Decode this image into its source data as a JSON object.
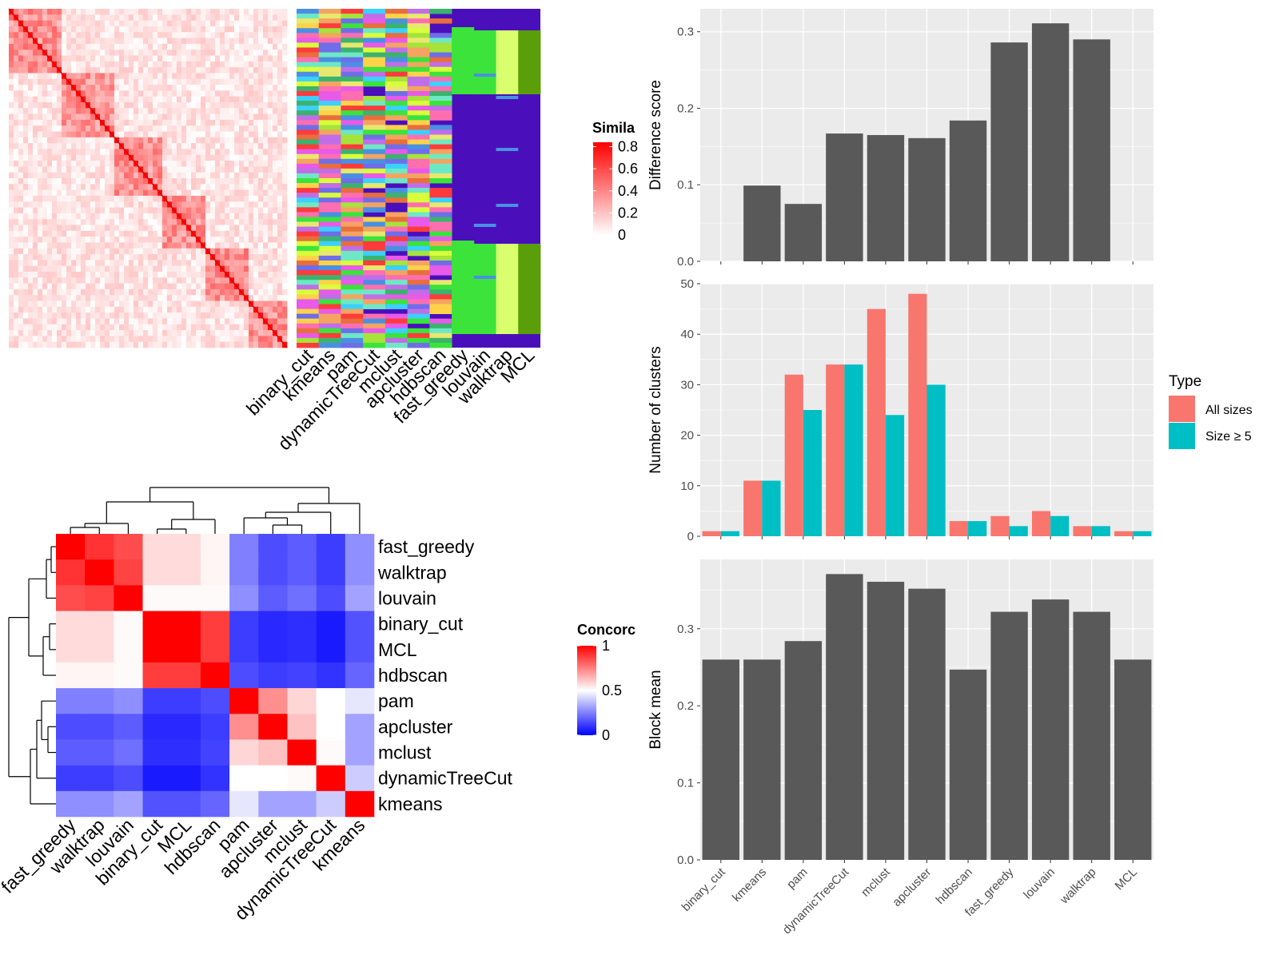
{
  "chart_data": [
    {
      "type": "heatmap",
      "panel": "similarity-heatmap",
      "legend_title": "Simila",
      "legend_ticks": [
        "0.8",
        "0.6",
        "0.4",
        "0.2",
        "0"
      ],
      "legend_values": [
        0.8,
        0.6,
        0.4,
        0.2,
        0
      ],
      "colors": {
        "low": "#ffffff",
        "high": "#ff0000"
      }
    },
    {
      "type": "heatmap",
      "panel": "cluster-membership",
      "categories": [
        "binary_cut",
        "kmeans",
        "pam",
        "dynamicTreeCut",
        "mclust",
        "apcluster",
        "hdbscan",
        "fast_greedy",
        "louvain",
        "walktrap",
        "MCL"
      ],
      "background": "#4a0fbb"
    },
    {
      "type": "heatmap",
      "panel": "concordance",
      "legend_title": "Concorc",
      "legend_ticks": [
        "1",
        "0.5",
        "0"
      ],
      "legend_values": [
        1,
        0.5,
        0
      ],
      "colors": {
        "low": "#0000ff",
        "mid": "#ffffff",
        "high": "#ff0000"
      },
      "rows": [
        "fast_greedy",
        "walktrap",
        "louvain",
        "binary_cut",
        "MCL",
        "hdbscan",
        "pam",
        "apcluster",
        "mclust",
        "dynamicTreeCut",
        "kmeans"
      ],
      "cols": [
        "fast_greedy",
        "walktrap",
        "louvain",
        "binary_cut",
        "MCL",
        "hdbscan",
        "pam",
        "apcluster",
        "mclust",
        "dynamicTreeCut",
        "kmeans"
      ],
      "values": [
        [
          1.0,
          0.9,
          0.85,
          0.57,
          0.57,
          0.52,
          0.25,
          0.15,
          0.18,
          0.12,
          0.28
        ],
        [
          0.9,
          1.0,
          0.87,
          0.57,
          0.57,
          0.52,
          0.25,
          0.15,
          0.18,
          0.12,
          0.28
        ],
        [
          0.85,
          0.87,
          1.0,
          0.51,
          0.51,
          0.51,
          0.28,
          0.18,
          0.22,
          0.15,
          0.32
        ],
        [
          0.57,
          0.57,
          0.51,
          1.0,
          1.0,
          0.88,
          0.12,
          0.08,
          0.09,
          0.05,
          0.16
        ],
        [
          0.57,
          0.57,
          0.51,
          1.0,
          1.0,
          0.88,
          0.12,
          0.08,
          0.09,
          0.05,
          0.16
        ],
        [
          0.52,
          0.52,
          0.51,
          0.88,
          0.88,
          1.0,
          0.15,
          0.12,
          0.13,
          0.1,
          0.2
        ],
        [
          0.25,
          0.25,
          0.28,
          0.12,
          0.12,
          0.15,
          1.0,
          0.72,
          0.58,
          0.5,
          0.45
        ],
        [
          0.15,
          0.15,
          0.18,
          0.08,
          0.08,
          0.12,
          0.72,
          1.0,
          0.62,
          0.5,
          0.32
        ],
        [
          0.18,
          0.18,
          0.22,
          0.09,
          0.09,
          0.13,
          0.58,
          0.62,
          1.0,
          0.51,
          0.32
        ],
        [
          0.12,
          0.12,
          0.15,
          0.05,
          0.05,
          0.1,
          0.5,
          0.5,
          0.51,
          1.0,
          0.4
        ],
        [
          0.28,
          0.28,
          0.32,
          0.16,
          0.16,
          0.2,
          0.45,
          0.32,
          0.32,
          0.4,
          1.0
        ]
      ]
    },
    {
      "type": "bar",
      "panel": "difference-score",
      "categories": [
        "binary_cut",
        "kmeans",
        "pam",
        "dynamicTreeCut",
        "mclust",
        "apcluster",
        "hdbscan",
        "fast_greedy",
        "louvain",
        "walktrap",
        "MCL"
      ],
      "values": [
        0,
        0.099,
        0.075,
        0.167,
        0.165,
        0.161,
        0.184,
        0.286,
        0.311,
        0.29,
        0
      ],
      "ylabel": "Difference score",
      "ylim": [
        0,
        0.33
      ],
      "yticks": [
        0.0,
        0.1,
        0.2,
        0.3
      ],
      "ytick_labels": [
        "0.0",
        "0.1",
        "0.2",
        "0.3"
      ],
      "color": "#595959",
      "background": "#ebebeb",
      "grid": true
    },
    {
      "type": "bar",
      "panel": "number-of-clusters",
      "categories": [
        "binary_cut",
        "kmeans",
        "pam",
        "dynamicTreeCut",
        "mclust",
        "apcluster",
        "hdbscan",
        "fast_greedy",
        "louvain",
        "walktrap",
        "MCL"
      ],
      "series": [
        {
          "name": "All sizes",
          "values": [
            1,
            11,
            32,
            34,
            45,
            48,
            3,
            4,
            5,
            2,
            1
          ],
          "color": "#f8766d"
        },
        {
          "name": "Size ≥ 5",
          "values": [
            1,
            11,
            25,
            34,
            24,
            30,
            3,
            2,
            4,
            2,
            1
          ],
          "color": "#00bfc4"
        }
      ],
      "ylabel": "Number of clusters",
      "ylim": [
        0,
        50
      ],
      "yticks": [
        0,
        10,
        20,
        30,
        40,
        50
      ],
      "ytick_labels": [
        "0",
        "10",
        "20",
        "30",
        "40",
        "50"
      ],
      "legend_title": "Type",
      "legend_position": "right",
      "background": "#ebebeb",
      "grid": true
    },
    {
      "type": "bar",
      "panel": "block-mean",
      "categories": [
        "binary_cut",
        "kmeans",
        "pam",
        "dynamicTreeCut",
        "mclust",
        "apcluster",
        "hdbscan",
        "fast_greedy",
        "louvain",
        "walktrap",
        "MCL"
      ],
      "values": [
        0.26,
        0.26,
        0.284,
        0.371,
        0.361,
        0.352,
        0.247,
        0.322,
        0.338,
        0.322,
        0.26
      ],
      "ylabel": "Block mean",
      "ylim": [
        0,
        0.39
      ],
      "yticks": [
        0.0,
        0.1,
        0.2,
        0.3
      ],
      "ytick_labels": [
        "0.0",
        "0.1",
        "0.2",
        "0.3"
      ],
      "color": "#595959",
      "background": "#ebebeb",
      "grid": true
    }
  ]
}
